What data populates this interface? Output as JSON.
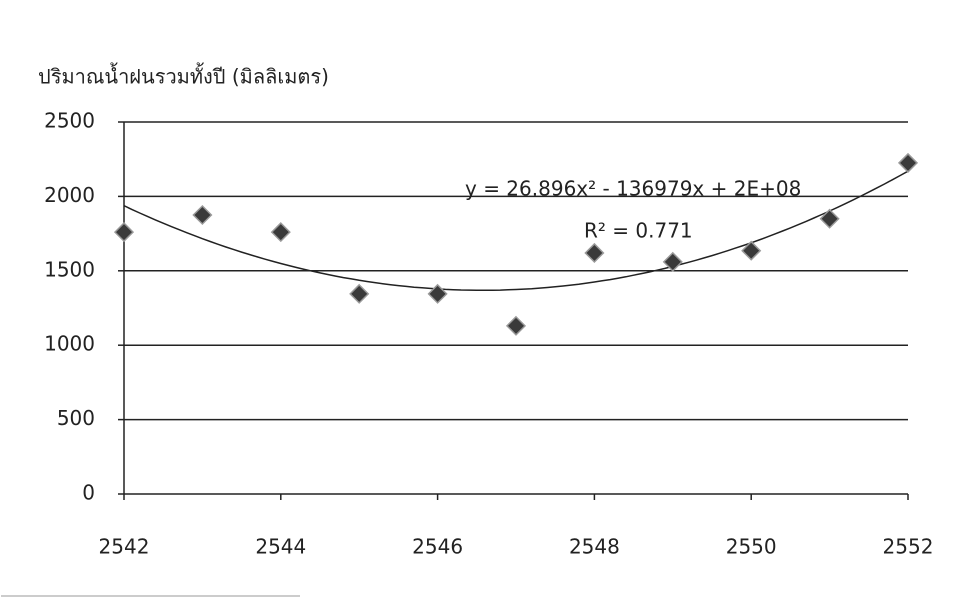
{
  "chart_data": {
    "type": "scatter",
    "title": "ปริมาณน้ำฝนรวมทั้งปี (มิลลิเมตร)",
    "x": [
      2542,
      2543,
      2544,
      2545,
      2546,
      2547,
      2548,
      2549,
      2550,
      2551,
      2552
    ],
    "series": [
      {
        "color": "#3a3a3a",
        "values": [
          1760,
          1875,
          1760,
          1345,
          1345,
          1130,
          1620,
          1560,
          1635,
          1850,
          2225
        ]
      }
    ],
    "xlim": [
      2542,
      2552
    ],
    "xticks": [
      2542,
      2544,
      2546,
      2548,
      2550,
      2552
    ],
    "ylim": [
      0,
      2500
    ],
    "yticks": [
      0,
      500,
      1000,
      1500,
      2000,
      2500
    ],
    "grid": true,
    "trendline": {
      "type": "polynomial",
      "equation": "y = 26.896x² - 136979x + 2E+08",
      "r_squared": "R² = 0.771"
    }
  }
}
